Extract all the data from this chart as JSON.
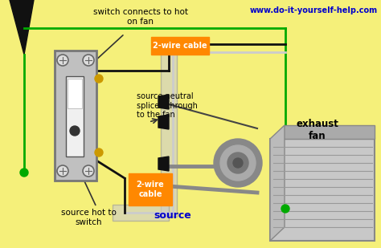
{
  "bg_color": "#f5f07a",
  "title_url": "www.do-it-yourself-help.com",
  "title_color": "#0000cc",
  "labels": {
    "switch_top": "switch connects to hot\non fan",
    "cable_top": "2-wire cable",
    "neutral_mid": "source neutral\nspliced through\nto the fan",
    "cable_bot": "2-wire\ncable",
    "source_hot": "source hot to\nswitch",
    "source_label": "source",
    "exhaust": "exhaust\nfan"
  },
  "wire_black": "#111111",
  "wire_white": "#cccccc",
  "wire_green": "#00aa00",
  "wire_gray": "#888888",
  "orange_bg": "#ff8800",
  "source_text_color": "#0000cc"
}
